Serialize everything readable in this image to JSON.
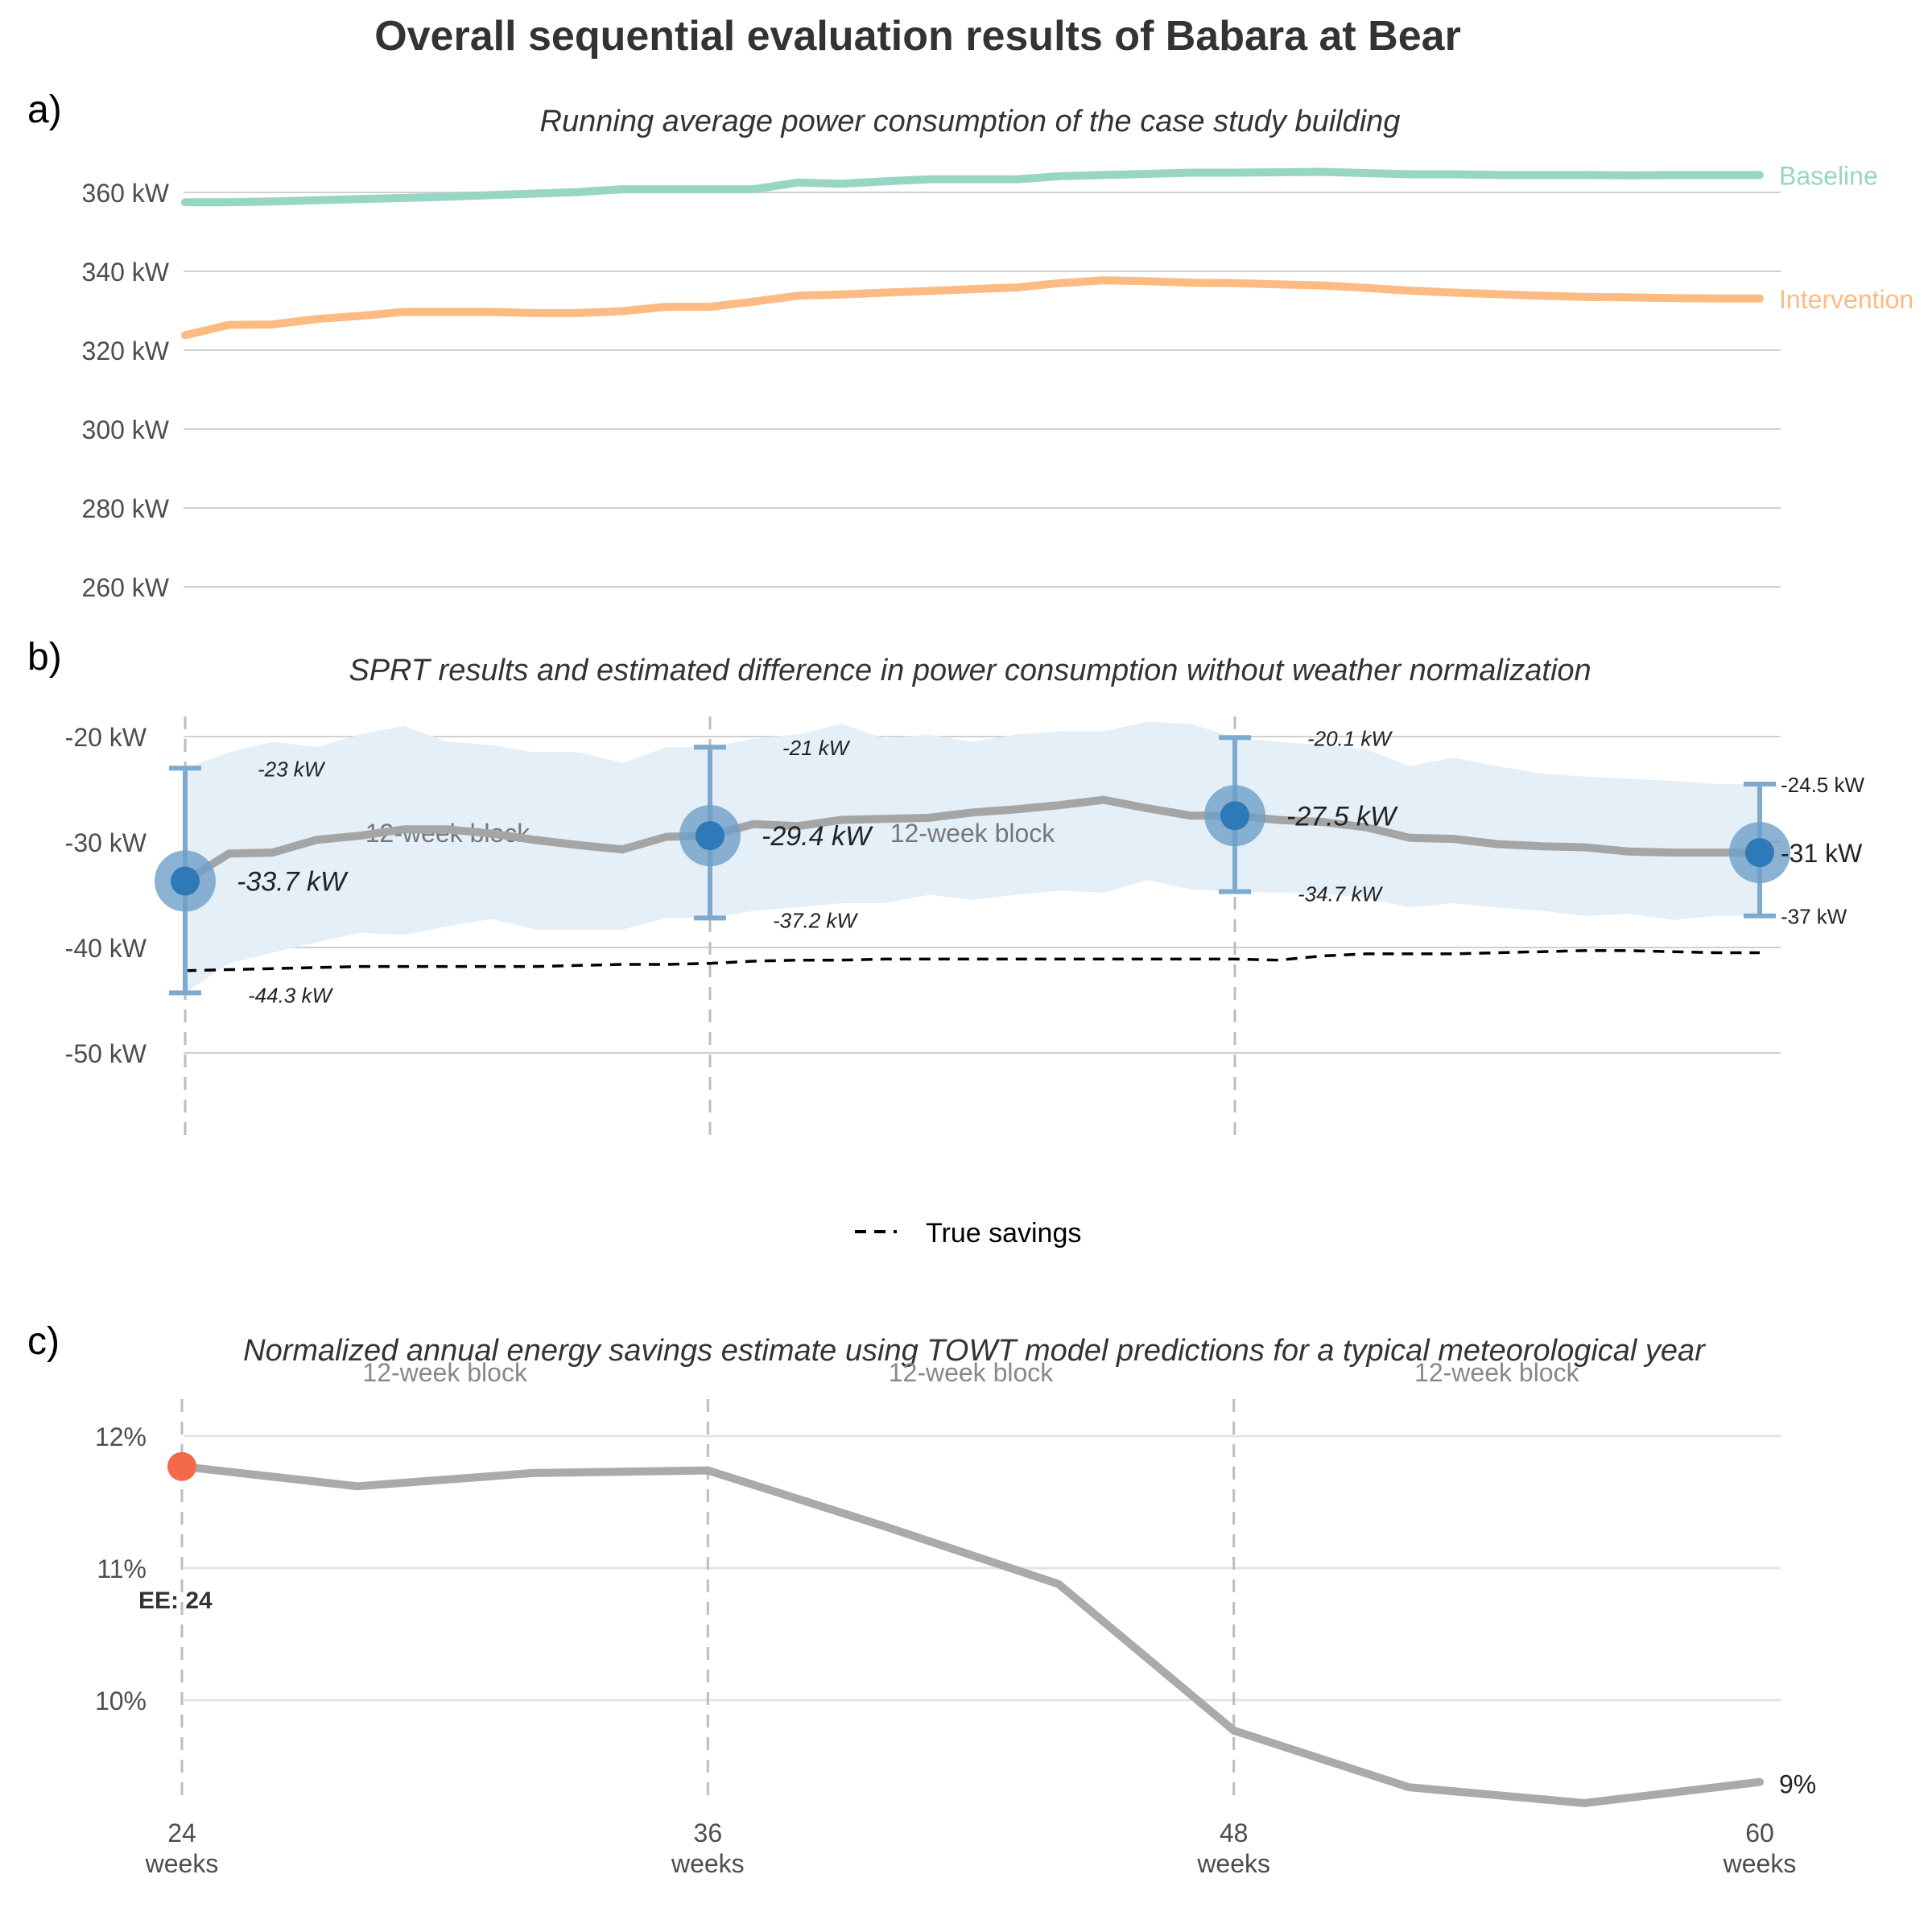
{
  "title": "Overall sequential evaluation results of Babara at Bear",
  "colors": {
    "baseline": "#99d5c5",
    "intervention": "#fdbb84",
    "estimate_line": "#a3a5a6",
    "ci_band": "#e4eff8",
    "sprt_point": "#2e7ab8",
    "sprt_halo": "#6e9fc8",
    "errorbar": "#7eaad0",
    "true_savings": "#000000",
    "savings_line": "#aaaaaa",
    "ee_marker": "#f4694a",
    "grid": "#d0d0d0",
    "block_line": "#bdbdbd",
    "text": "#333333",
    "axis_text": "#4d4d4d"
  },
  "chart_data": [
    {
      "panel": "a)",
      "type": "line",
      "title": "Running average power consumption of the case study building",
      "ylim": [
        255,
        372
      ],
      "yticks": [
        360,
        340,
        320,
        300,
        280,
        260
      ],
      "ytick_labels": [
        "360 kW",
        "340 kW",
        "320 kW",
        "300 kW",
        "280 kW",
        "260 kW"
      ],
      "grid": true,
      "x": [
        24,
        25,
        26,
        27,
        28,
        29,
        30,
        31,
        32,
        33,
        34,
        35,
        36,
        37,
        38,
        39,
        40,
        41,
        42,
        43,
        44,
        45,
        46,
        47,
        48,
        49,
        50,
        51,
        52,
        53,
        54,
        55,
        56,
        57,
        58,
        59,
        60
      ],
      "series": [
        {
          "name": "Baseline",
          "values": [
            357.5,
            357.5,
            357.7,
            358.0,
            358.3,
            358.6,
            358.9,
            359.3,
            359.7,
            360.1,
            360.8,
            360.8,
            360.8,
            360.8,
            362.5,
            362.2,
            362.8,
            363.3,
            363.3,
            363.3,
            364.1,
            364.4,
            364.7,
            365.0,
            365.0,
            365.1,
            365.2,
            364.9,
            364.6,
            364.6,
            364.4,
            364.4,
            364.4,
            364.3,
            364.4,
            364.4,
            364.4
          ]
        },
        {
          "name": "Intervention",
          "values": [
            323.8,
            326.4,
            326.5,
            327.9,
            328.7,
            329.7,
            329.7,
            329.7,
            329.4,
            329.4,
            329.9,
            331.0,
            331.0,
            332.3,
            333.8,
            334.1,
            334.6,
            335.0,
            335.5,
            335.9,
            337.0,
            337.7,
            337.5,
            337.1,
            337.0,
            336.7,
            336.4,
            335.8,
            335.1,
            334.6,
            334.2,
            333.8,
            333.5,
            333.4,
            333.2,
            333.1,
            333.1
          ]
        }
      ]
    },
    {
      "panel": "b)",
      "type": "line",
      "title": "SPRT results and estimated difference in power consumption without weather normalization",
      "ylim": [
        -58,
        -15
      ],
      "yticks": [
        -20,
        -30,
        -40,
        -50
      ],
      "ytick_labels": [
        "-20 kW",
        "-30 kW",
        "-40 kW",
        "-50 kW"
      ],
      "grid": true,
      "block_label": "12-week block",
      "x": [
        24,
        25,
        26,
        27,
        28,
        29,
        30,
        31,
        32,
        33,
        34,
        35,
        36,
        37,
        38,
        39,
        40,
        41,
        42,
        43,
        44,
        45,
        46,
        47,
        48,
        49,
        50,
        51,
        52,
        53,
        54,
        55,
        56,
        57,
        58,
        59,
        60
      ],
      "estimate": [
        -33.7,
        -31.1,
        -31.0,
        -29.8,
        -29.4,
        -28.8,
        -28.8,
        -29.2,
        -29.8,
        -30.3,
        -30.7,
        -29.5,
        -29.4,
        -28.3,
        -28.5,
        -27.9,
        -27.8,
        -27.7,
        -27.2,
        -26.9,
        -26.5,
        -26.0,
        -26.8,
        -27.5,
        -27.5,
        -27.9,
        -28.1,
        -28.6,
        -29.6,
        -29.7,
        -30.2,
        -30.4,
        -30.5,
        -30.9,
        -31.0,
        -31.0,
        -31.0
      ],
      "ci_upper": [
        -23.0,
        -21.5,
        -20.5,
        -21.0,
        -19.8,
        -19.0,
        -20.5,
        -20.8,
        -21.5,
        -21.5,
        -22.5,
        -21.0,
        -21.0,
        -20.2,
        -19.8,
        -18.8,
        -20.2,
        -19.8,
        -20.5,
        -19.8,
        -19.5,
        -19.5,
        -18.6,
        -18.8,
        -20.1,
        -20.5,
        -20.8,
        -21.2,
        -22.8,
        -22.0,
        -22.8,
        -23.5,
        -23.8,
        -24.0,
        -24.2,
        -24.5,
        -24.5
      ],
      "ci_lower": [
        -44.3,
        -41.5,
        -40.5,
        -39.5,
        -38.6,
        -38.8,
        -38.0,
        -37.3,
        -38.3,
        -38.3,
        -38.3,
        -37.2,
        -37.2,
        -36.5,
        -36.2,
        -35.8,
        -35.8,
        -35.0,
        -35.5,
        -35.0,
        -34.6,
        -34.8,
        -33.6,
        -34.5,
        -34.7,
        -34.8,
        -34.9,
        -35.3,
        -36.2,
        -35.8,
        -36.2,
        -36.5,
        -37.0,
        -36.8,
        -37.4,
        -37.0,
        -37.0
      ],
      "true_savings": [
        -42.2,
        -42.1,
        -42.0,
        -41.9,
        -41.8,
        -41.8,
        -41.8,
        -41.8,
        -41.8,
        -41.7,
        -41.6,
        -41.6,
        -41.5,
        -41.3,
        -41.2,
        -41.2,
        -41.1,
        -41.1,
        -41.1,
        -41.1,
        -41.1,
        -41.1,
        -41.1,
        -41.1,
        -41.1,
        -41.2,
        -40.8,
        -40.6,
        -40.6,
        -40.6,
        -40.5,
        -40.4,
        -40.3,
        -40.3,
        -40.4,
        -40.5,
        -40.5
      ],
      "sprt_points": [
        {
          "x": 24,
          "estimate": -33.7,
          "upper": -23,
          "lower": -44.3,
          "label": "-33.7 kW",
          "upper_label": "-23 kW",
          "lower_label": "-44.3 kW"
        },
        {
          "x": 36,
          "estimate": -29.4,
          "upper": -21,
          "lower": -37.2,
          "label": "-29.4 kW",
          "upper_label": "-21 kW",
          "lower_label": "-37.2 kW"
        },
        {
          "x": 48,
          "estimate": -27.5,
          "upper": -20.1,
          "lower": -34.7,
          "label": "-27.5 kW",
          "upper_label": "-20.1 kW",
          "lower_label": "-34.7 kW"
        },
        {
          "x": 60,
          "estimate": -31,
          "upper": -24.5,
          "lower": -37,
          "label": "-31 kW",
          "upper_label": "-24.5 kW",
          "lower_label": "-37 kW"
        }
      ],
      "legend": {
        "label": "True savings",
        "placement": "bottom-center"
      }
    },
    {
      "panel": "c)",
      "type": "line",
      "title": "Normalized annual energy savings estimate using TOWT model predictions for a typical meteorological year",
      "ylim": [
        9.1,
        12.3
      ],
      "yticks": [
        12,
        11,
        10
      ],
      "ytick_labels": [
        "12%",
        "11%",
        "10%"
      ],
      "grid": true,
      "block_label": "12-week block",
      "x": [
        24,
        28,
        32,
        36,
        40,
        44,
        48,
        52,
        56,
        60
      ],
      "values": [
        11.77,
        11.62,
        11.72,
        11.74,
        11.32,
        10.88,
        9.77,
        9.34,
        9.22,
        9.38
      ],
      "end_label": "9%",
      "ee_marker": {
        "x": 24,
        "value": 11.77,
        "label": "EE: 24"
      },
      "xticks": [
        24,
        36,
        48,
        60
      ],
      "xtick_labels": [
        "24",
        "36",
        "48",
        "60"
      ],
      "xtick_unit": "weeks"
    }
  ]
}
